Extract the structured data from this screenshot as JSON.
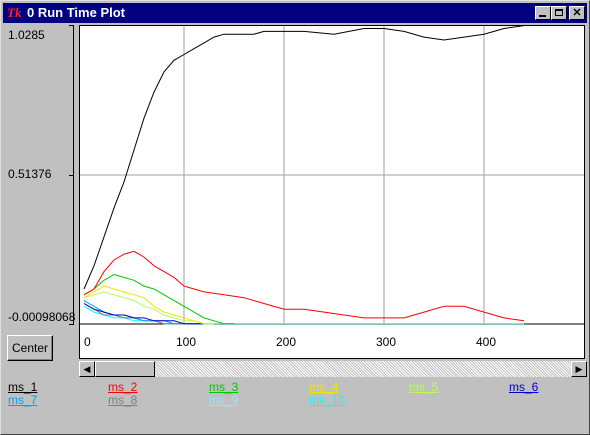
{
  "window": {
    "title": "0 Run Time Plot",
    "logo_text": "Tk"
  },
  "buttons": {
    "center_label": "Center"
  },
  "axis": {
    "y_tick_labels": [
      "1.0285",
      "0.51376",
      "-0.00098068"
    ],
    "x_tick_labels": [
      "0",
      "100",
      "200",
      "300",
      "400"
    ]
  },
  "legend": [
    {
      "name": "ms_1",
      "color": "#000000"
    },
    {
      "name": "ms_2",
      "color": "#ff0000"
    },
    {
      "name": "ms_3",
      "color": "#00c800"
    },
    {
      "name": "ms_4",
      "color": "#e8e800"
    },
    {
      "name": "ms_5",
      "color": "#b4ff50"
    },
    {
      "name": "ms_6",
      "color": "#0000c8"
    },
    {
      "name": "ms_7",
      "color": "#00a0ff"
    },
    {
      "name": "ms_8",
      "color": "#808080"
    },
    {
      "name": "ms_9",
      "color": "#a0e0ff"
    },
    {
      "name": "ms_10",
      "color": "#00ffff"
    }
  ],
  "chart_data": {
    "type": "line",
    "xlim": [
      0,
      480
    ],
    "ylim": [
      -0.00098068,
      1.0285
    ],
    "grid": true,
    "series": [
      {
        "name": "ms_1",
        "color": "#000000",
        "x": [
          0,
          10,
          20,
          30,
          40,
          50,
          60,
          70,
          80,
          90,
          100,
          110,
          120,
          130,
          140,
          150,
          160,
          170,
          180,
          200,
          220,
          250,
          280,
          300,
          320,
          340,
          360,
          380,
          400,
          420,
          440
        ],
        "y": [
          0.12,
          0.2,
          0.3,
          0.4,
          0.49,
          0.6,
          0.71,
          0.8,
          0.87,
          0.91,
          0.93,
          0.95,
          0.97,
          0.99,
          1.0,
          1.0,
          1.0,
          1.0,
          1.01,
          1.01,
          1.01,
          1.0,
          1.02,
          1.02,
          1.01,
          0.99,
          0.98,
          0.99,
          1.0,
          1.02,
          1.03
        ]
      },
      {
        "name": "ms_2",
        "color": "#ff0000",
        "x": [
          0,
          10,
          20,
          30,
          40,
          50,
          60,
          70,
          80,
          90,
          100,
          110,
          120,
          140,
          160,
          180,
          200,
          220,
          240,
          260,
          280,
          300,
          320,
          340,
          360,
          380,
          400,
          420,
          440
        ],
        "y": [
          0.1,
          0.12,
          0.18,
          0.22,
          0.24,
          0.25,
          0.23,
          0.2,
          0.18,
          0.16,
          0.13,
          0.12,
          0.11,
          0.1,
          0.09,
          0.07,
          0.05,
          0.05,
          0.04,
          0.03,
          0.02,
          0.02,
          0.02,
          0.04,
          0.06,
          0.06,
          0.04,
          0.02,
          0.01
        ]
      },
      {
        "name": "ms_3",
        "color": "#00c800",
        "x": [
          0,
          10,
          20,
          30,
          40,
          50,
          60,
          70,
          80,
          90,
          100,
          110,
          120,
          130,
          140,
          150
        ],
        "y": [
          0.1,
          0.12,
          0.15,
          0.17,
          0.16,
          0.15,
          0.13,
          0.12,
          0.1,
          0.08,
          0.06,
          0.04,
          0.02,
          0.01,
          0.0,
          0.0
        ]
      },
      {
        "name": "ms_4",
        "color": "#e8e800",
        "x": [
          0,
          10,
          20,
          30,
          40,
          50,
          60,
          70,
          80,
          90,
          100,
          110,
          120,
          130
        ],
        "y": [
          0.09,
          0.11,
          0.13,
          0.12,
          0.11,
          0.1,
          0.09,
          0.06,
          0.04,
          0.03,
          0.02,
          0.01,
          0.0,
          0.0
        ]
      },
      {
        "name": "ms_5",
        "color": "#b4ff50",
        "x": [
          0,
          10,
          20,
          30,
          40,
          50,
          60,
          70,
          80,
          90,
          100,
          110,
          120,
          130
        ],
        "y": [
          0.09,
          0.1,
          0.11,
          0.1,
          0.09,
          0.08,
          0.06,
          0.05,
          0.03,
          0.02,
          0.01,
          0.01,
          0.0,
          0.0
        ]
      },
      {
        "name": "ms_6",
        "color": "#0000c8",
        "x": [
          0,
          10,
          20,
          30,
          40,
          50,
          60,
          70,
          80,
          90,
          100,
          110,
          120
        ],
        "y": [
          0.07,
          0.05,
          0.04,
          0.03,
          0.03,
          0.02,
          0.02,
          0.01,
          0.01,
          0.01,
          0.0,
          0.0,
          0.0
        ]
      },
      {
        "name": "ms_7",
        "color": "#00a0ff",
        "x": [
          0,
          10,
          20,
          30,
          40,
          50,
          60,
          70,
          80,
          90,
          100,
          110,
          120
        ],
        "y": [
          0.08,
          0.06,
          0.04,
          0.03,
          0.03,
          0.02,
          0.01,
          0.01,
          0.01,
          0.0,
          0.0,
          0.0,
          0.0
        ]
      },
      {
        "name": "ms_8",
        "color": "#808080",
        "x": [
          0,
          10,
          20,
          30,
          40,
          50,
          60,
          70,
          80,
          90,
          100
        ],
        "y": [
          0.07,
          0.05,
          0.03,
          0.03,
          0.02,
          0.02,
          0.01,
          0.01,
          0.0,
          0.0,
          0.0
        ]
      },
      {
        "name": "ms_9",
        "color": "#a0e0ff",
        "x": [
          0,
          10,
          20,
          30,
          40,
          50,
          60,
          70,
          80,
          90,
          100
        ],
        "y": [
          0.07,
          0.05,
          0.04,
          0.03,
          0.02,
          0.02,
          0.01,
          0.01,
          0.0,
          0.0,
          0.0
        ]
      },
      {
        "name": "ms_10",
        "color": "#00ffff",
        "x": [
          0,
          10,
          20,
          30,
          40,
          50,
          60,
          70,
          80,
          90,
          100,
          150,
          200,
          250,
          300,
          350,
          400,
          440
        ],
        "y": [
          0.06,
          0.04,
          0.03,
          0.02,
          0.02,
          0.01,
          0.01,
          0.01,
          0.0,
          0.0,
          0.0,
          0.0,
          0.0,
          0.0,
          0.0,
          0.0,
          0.0,
          0.0
        ]
      }
    ]
  }
}
